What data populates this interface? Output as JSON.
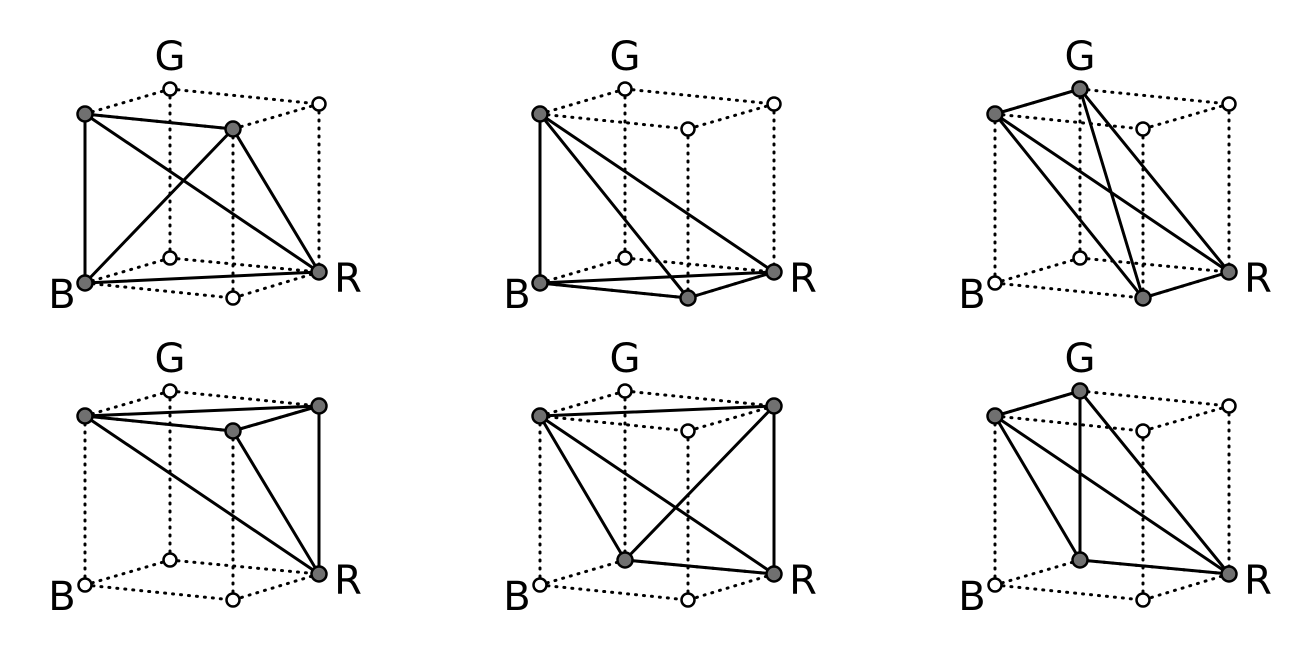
{
  "axis_labels": {
    "g": "G",
    "b": "B",
    "r": "R"
  },
  "colors": {
    "filled_vertex": "#707070",
    "open_vertex": "#ffffff",
    "stroke": "#000000"
  },
  "vertex_names": [
    "K",
    "G",
    "W",
    "C",
    "B",
    "R",
    "Y",
    "M"
  ],
  "panels": [
    {
      "filled": [
        "C",
        "B",
        "R",
        "Y"
      ],
      "edges": [
        [
          "C",
          "B"
        ],
        [
          "C",
          "R"
        ],
        [
          "C",
          "Y"
        ],
        [
          "B",
          "R"
        ],
        [
          "B",
          "Y"
        ],
        [
          "R",
          "Y"
        ]
      ]
    },
    {
      "filled": [
        "C",
        "M",
        "B",
        "R"
      ],
      "edges": [
        [
          "C",
          "M"
        ],
        [
          "C",
          "B"
        ],
        [
          "C",
          "R"
        ],
        [
          "M",
          "B"
        ],
        [
          "M",
          "R"
        ],
        [
          "B",
          "R"
        ]
      ]
    },
    {
      "filled": [
        "M",
        "G",
        "C",
        "R"
      ],
      "edges": [
        [
          "M",
          "G"
        ],
        [
          "M",
          "C"
        ],
        [
          "M",
          "R"
        ],
        [
          "G",
          "C"
        ],
        [
          "G",
          "R"
        ],
        [
          "C",
          "R"
        ]
      ]
    },
    {
      "filled": [
        "C",
        "R",
        "W",
        "Y"
      ],
      "edges": [
        [
          "C",
          "R"
        ],
        [
          "C",
          "W"
        ],
        [
          "C",
          "Y"
        ],
        [
          "R",
          "W"
        ],
        [
          "R",
          "Y"
        ],
        [
          "W",
          "Y"
        ]
      ]
    },
    {
      "filled": [
        "C",
        "K",
        "W",
        "R"
      ],
      "edges": [
        [
          "C",
          "K"
        ],
        [
          "C",
          "W"
        ],
        [
          "C",
          "R"
        ],
        [
          "K",
          "W"
        ],
        [
          "K",
          "R"
        ],
        [
          "W",
          "R"
        ]
      ]
    },
    {
      "filled": [
        "G",
        "K",
        "C",
        "R"
      ],
      "edges": [
        [
          "G",
          "K"
        ],
        [
          "G",
          "C"
        ],
        [
          "G",
          "R"
        ],
        [
          "K",
          "C"
        ],
        [
          "K",
          "R"
        ],
        [
          "C",
          "R"
        ]
      ]
    }
  ]
}
